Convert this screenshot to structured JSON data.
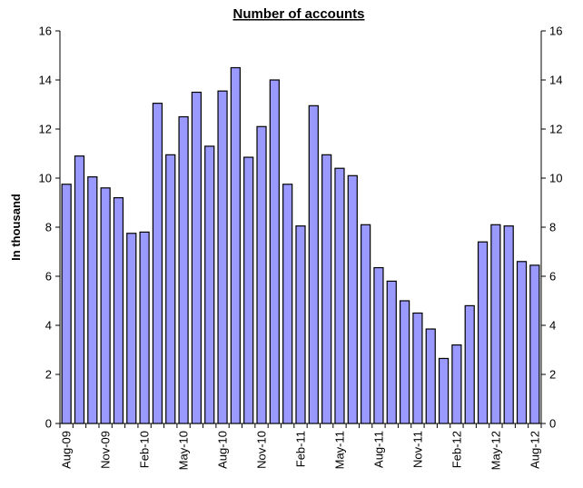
{
  "chart_data": {
    "type": "bar",
    "title": "Number of accounts",
    "ylabel": "In thousand",
    "xlabel": "",
    "ylim": [
      0,
      16
    ],
    "yticks": [
      0,
      2,
      4,
      6,
      8,
      10,
      12,
      14,
      16
    ],
    "secondary_y_axis": true,
    "grid": false,
    "legend": "none",
    "bar_color": "#9999ff",
    "bar_edge_color": "#000000",
    "categories": [
      "Aug-09",
      "Sep-09",
      "Oct-09",
      "Nov-09",
      "Dec-09",
      "Jan-10",
      "Feb-10",
      "Mar-10",
      "Apr-10",
      "May-10",
      "Jun-10",
      "Jul-10",
      "Aug-10",
      "Sep-10",
      "Oct-10",
      "Nov-10",
      "Dec-10",
      "Jan-11",
      "Feb-11",
      "Mar-11",
      "Apr-11",
      "May-11",
      "Jun-11",
      "Jul-11",
      "Aug-11",
      "Sep-11",
      "Oct-11",
      "Nov-11",
      "Dec-11",
      "Jan-12",
      "Feb-12",
      "Mar-12",
      "Apr-12",
      "May-12",
      "Jun-12",
      "Jul-12",
      "Aug-12"
    ],
    "x_tick_labels": [
      "Aug-09",
      "",
      "",
      "Nov-09",
      "",
      "",
      "Feb-10",
      "",
      "",
      "May-10",
      "",
      "",
      "Aug-10",
      "",
      "",
      "Nov-10",
      "",
      "",
      "Feb-11",
      "",
      "",
      "May-11",
      "",
      "",
      "Aug-11",
      "",
      "",
      "Nov-11",
      "",
      "",
      "Feb-12",
      "",
      "",
      "May-12",
      "",
      "",
      "Aug-12"
    ],
    "values": [
      9.75,
      10.9,
      10.05,
      9.6,
      9.2,
      7.75,
      7.8,
      13.05,
      10.95,
      12.5,
      13.5,
      11.3,
      13.55,
      14.5,
      10.85,
      12.1,
      14.0,
      9.75,
      8.05,
      12.95,
      10.95,
      10.4,
      10.1,
      8.1,
      6.35,
      5.8,
      5.0,
      4.5,
      3.85,
      2.65,
      3.2,
      4.8,
      7.4,
      8.1,
      8.05,
      6.6,
      6.45
    ]
  }
}
